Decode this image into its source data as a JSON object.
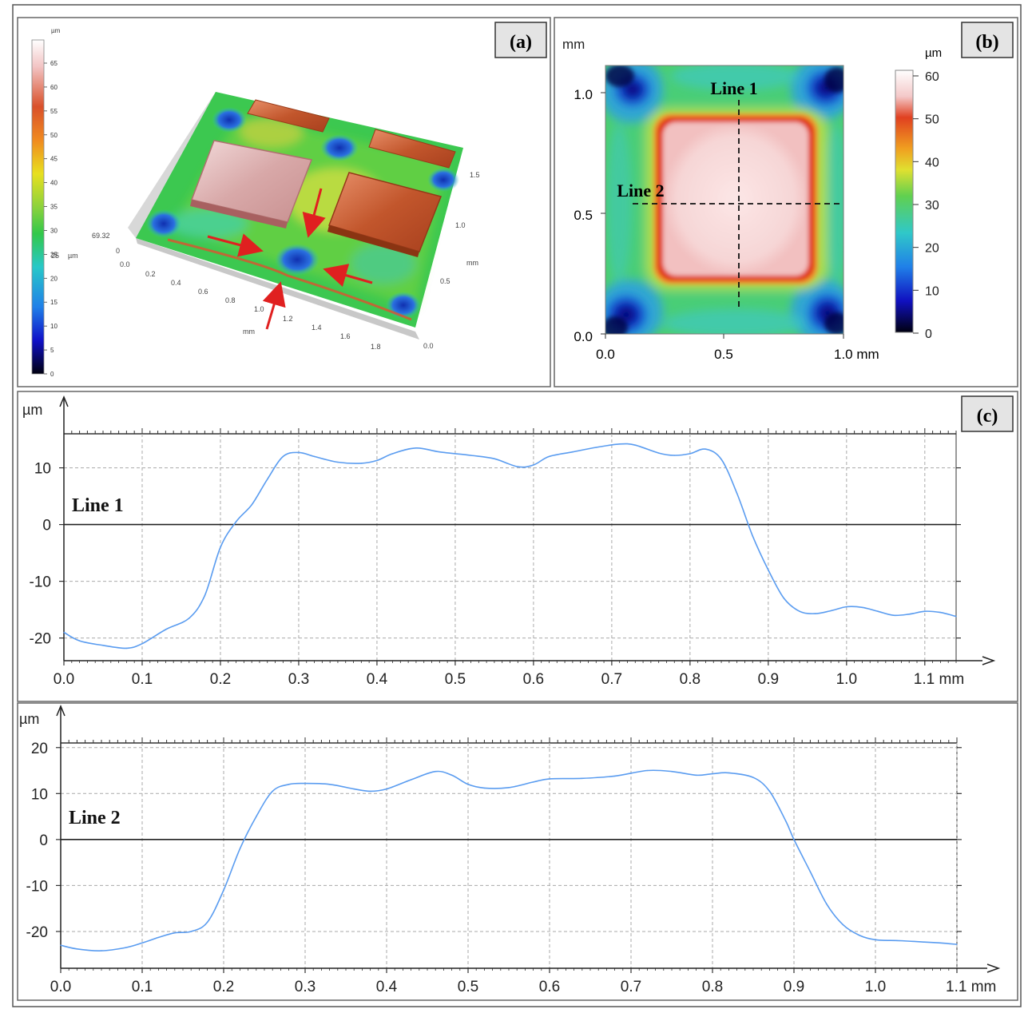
{
  "panels": {
    "a": {
      "label": "(a)",
      "colorbar": {
        "unit": "µm",
        "ticks": [
          "65",
          "60",
          "55",
          "50",
          "45",
          "40",
          "35",
          "30",
          "25",
          "20",
          "15",
          "10",
          "5",
          "0"
        ],
        "side_labels": [
          "69.32",
          "25",
          "µm"
        ]
      },
      "axis_depth_ticks": [
        "0",
        "0.0",
        "0.2",
        "0.4",
        "0.6",
        "0.8",
        "1.0",
        "1.2",
        "1.4",
        "1.6",
        "1.8"
      ],
      "axis_depth_unit": "mm",
      "axis_right_ticks": [
        "1.5",
        "1.0",
        "0.5",
        "0.0"
      ],
      "axis_right_unit": "mm"
    },
    "b": {
      "label": "(b)",
      "y_unit": "mm",
      "y_ticks": [
        "1.0",
        "0.5",
        "0.0"
      ],
      "x_ticks": [
        "0.0",
        "0.5",
        "1.0 mm"
      ],
      "colorbar_unit": "µm",
      "colorbar_ticks": [
        "60",
        "50",
        "40",
        "30",
        "20",
        "10",
        "0"
      ],
      "line1_label": "Line 1",
      "line2_label": "Line 2"
    },
    "c": {
      "label": "(c)"
    }
  },
  "chart_data": [
    {
      "type": "line",
      "panel": "(c)",
      "annotation": "Line 1",
      "ylabel": "µm",
      "xlim": [
        0.0,
        1.14
      ],
      "ylim": [
        -24,
        16
      ],
      "x_ticks": [
        "0.0",
        "0.1",
        "0.2",
        "0.3",
        "0.4",
        "0.5",
        "0.6",
        "0.7",
        "0.8",
        "0.9",
        "1.0",
        "1.1 mm"
      ],
      "y_ticks": [
        "10",
        "0",
        "-10",
        "-20"
      ],
      "grid": true,
      "color": "#5a9cf0",
      "x": [
        0.0,
        0.02,
        0.05,
        0.08,
        0.1,
        0.13,
        0.16,
        0.18,
        0.2,
        0.22,
        0.24,
        0.26,
        0.28,
        0.3,
        0.32,
        0.35,
        0.38,
        0.4,
        0.42,
        0.45,
        0.48,
        0.52,
        0.55,
        0.58,
        0.6,
        0.62,
        0.65,
        0.68,
        0.71,
        0.73,
        0.76,
        0.78,
        0.8,
        0.82,
        0.84,
        0.86,
        0.88,
        0.9,
        0.92,
        0.94,
        0.96,
        0.98,
        1.0,
        1.02,
        1.04,
        1.06,
        1.08,
        1.1,
        1.12,
        1.14
      ],
      "y": [
        -19,
        -20.5,
        -21.3,
        -21.8,
        -21,
        -18.5,
        -16.5,
        -12.5,
        -4,
        0.5,
        3.5,
        8,
        12,
        12.7,
        12,
        11,
        10.8,
        11.3,
        12.5,
        13.5,
        12.8,
        12.2,
        11.6,
        10.2,
        10.5,
        12,
        12.8,
        13.6,
        14.2,
        14,
        12.6,
        12.2,
        12.5,
        13.3,
        11.5,
        5.5,
        -2,
        -8,
        -13,
        -15.3,
        -15.7,
        -15.2,
        -14.5,
        -14.6,
        -15.3,
        -16,
        -15.8,
        -15.3,
        -15.5,
        -16.2
      ]
    },
    {
      "type": "line",
      "panel": "(c)",
      "annotation": "Line 2",
      "ylabel": "µm",
      "xlim": [
        0.0,
        1.1
      ],
      "ylim": [
        -28,
        21
      ],
      "x_ticks": [
        "0.0",
        "0.1",
        "0.2",
        "0.3",
        "0.4",
        "0.5",
        "0.6",
        "0.7",
        "0.8",
        "0.9",
        "1.0",
        "1.1 mm"
      ],
      "y_ticks": [
        "20",
        "10",
        "0",
        "-10",
        "-20"
      ],
      "grid": true,
      "color": "#5a9cf0",
      "x": [
        0.0,
        0.02,
        0.05,
        0.08,
        0.1,
        0.12,
        0.14,
        0.16,
        0.18,
        0.2,
        0.22,
        0.24,
        0.26,
        0.28,
        0.3,
        0.33,
        0.36,
        0.38,
        0.4,
        0.43,
        0.46,
        0.48,
        0.5,
        0.52,
        0.55,
        0.58,
        0.6,
        0.64,
        0.68,
        0.72,
        0.75,
        0.78,
        0.8,
        0.82,
        0.85,
        0.87,
        0.89,
        0.9,
        0.92,
        0.94,
        0.96,
        0.98,
        1.0,
        1.03,
        1.06,
        1.08,
        1.1
      ],
      "y": [
        -23,
        -23.8,
        -24.2,
        -23.5,
        -22.5,
        -21.3,
        -20.3,
        -20,
        -18,
        -11,
        -2,
        5,
        10.5,
        12,
        12.2,
        12,
        11,
        10.5,
        11,
        13,
        14.8,
        14,
        12,
        11.2,
        11.3,
        12.5,
        13.2,
        13.3,
        13.8,
        15,
        14.8,
        14,
        14.3,
        14.5,
        13.5,
        10.5,
        4,
        0,
        -7,
        -14,
        -18.5,
        -20.8,
        -21.8,
        -22,
        -22.3,
        -22.5,
        -22.8
      ]
    }
  ]
}
